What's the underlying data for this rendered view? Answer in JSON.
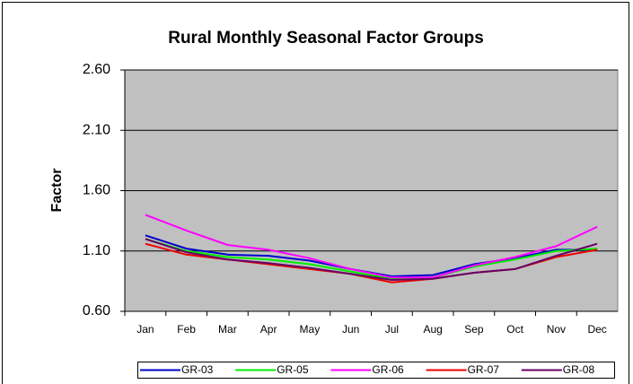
{
  "chart_data": {
    "type": "line",
    "title": "Rural Monthly Seasonal Factor Groups",
    "y_label": "Factor",
    "categories": [
      "Jan",
      "Feb",
      "Mar",
      "Apr",
      "May",
      "Jun",
      "Jul",
      "Aug",
      "Sep",
      "Oct",
      "Nov",
      "Dec"
    ],
    "ylim": [
      0.6,
      2.6
    ],
    "yticks": [
      {
        "value": 0.6,
        "label": "0.60"
      },
      {
        "value": 1.1,
        "label": "1.10"
      },
      {
        "value": 1.6,
        "label": "1.60"
      },
      {
        "value": 2.1,
        "label": "2.10"
      },
      {
        "value": 2.6,
        "label": "2.60"
      }
    ],
    "grid": true,
    "legend": "bottom",
    "series": [
      {
        "name": "GR-03",
        "color": "#0000cc",
        "values": [
          1.23,
          1.12,
          1.07,
          1.06,
          1.02,
          0.95,
          0.89,
          0.9,
          0.99,
          1.04,
          1.11,
          1.11
        ]
      },
      {
        "name": "GR-05",
        "color": "#00ee00",
        "values": [
          1.2,
          1.1,
          1.05,
          1.03,
          0.99,
          0.93,
          0.87,
          0.88,
          0.97,
          1.03,
          1.1,
          1.12
        ]
      },
      {
        "name": "GR-06",
        "color": "#ff00ff",
        "values": [
          1.4,
          1.27,
          1.15,
          1.11,
          1.04,
          0.95,
          0.88,
          0.88,
          0.98,
          1.05,
          1.14,
          1.3
        ]
      },
      {
        "name": "GR-07",
        "color": "#ee0000",
        "values": [
          1.16,
          1.07,
          1.03,
          0.99,
          0.95,
          0.91,
          0.84,
          0.87,
          0.92,
          0.95,
          1.05,
          1.11
        ]
      },
      {
        "name": "GR-08",
        "color": "#660066",
        "values": [
          1.2,
          1.09,
          1.03,
          1.0,
          0.96,
          0.91,
          0.86,
          0.87,
          0.92,
          0.95,
          1.06,
          1.16
        ]
      }
    ]
  }
}
